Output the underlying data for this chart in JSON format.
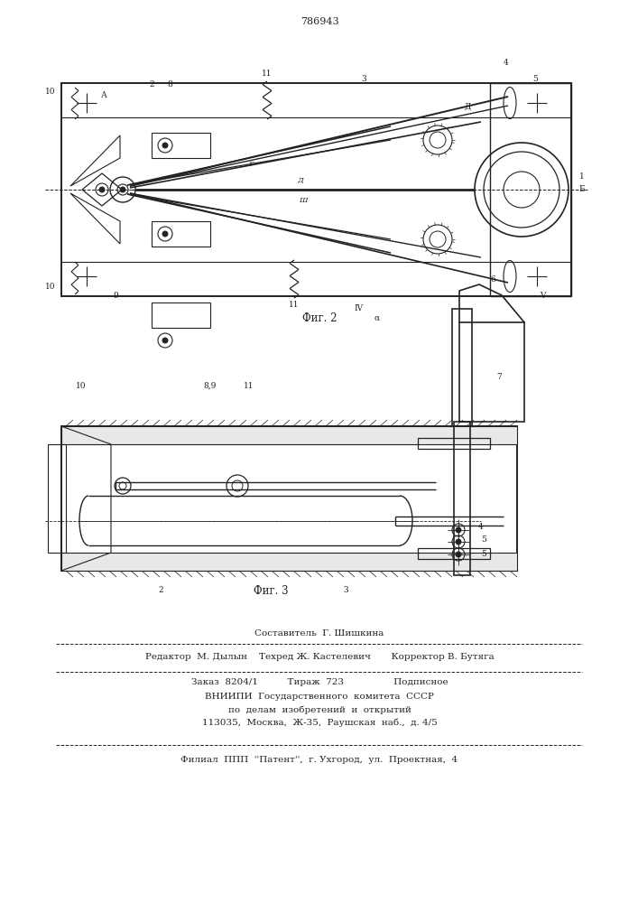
{
  "patent_number": "786943",
  "fig2_caption": "Фиг. 2",
  "fig3_caption": "Фиг. 3",
  "footer_line1_center": "Составитель  Г. Шишкина",
  "footer_line2": "Редактор  М. Дылын    Техред Ж. Кастелевич       Корректор В. Бутяга",
  "footer_line3": "Заказ  8204/1          Тираж  723                 Подписное",
  "footer_line4": "ВНИИПИ  Государственного  комитета  СССР",
  "footer_line5": "по  делам  изобретений  и  открытий",
  "footer_line6": "113035,  Москва,  Ж-35,  Раушская  наб.,  д. 4/5",
  "footer_line7": "Филиал  ППП  ''Патент'',  г. Ухгород,  ул.  Проектная,  4",
  "bg_color": "#ffffff",
  "line_color": "#222222"
}
